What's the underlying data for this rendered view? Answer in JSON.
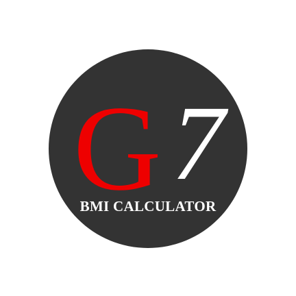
{
  "logo": {
    "mark_letter": "G",
    "mark_digit": "7",
    "subtitle": "BMI CALCULATOR"
  },
  "colors": {
    "page_background": "#ffffff",
    "badge_background": "#333333",
    "letter": "#ee0000",
    "digit": "#ffffff",
    "subtitle": "#ffffff"
  }
}
